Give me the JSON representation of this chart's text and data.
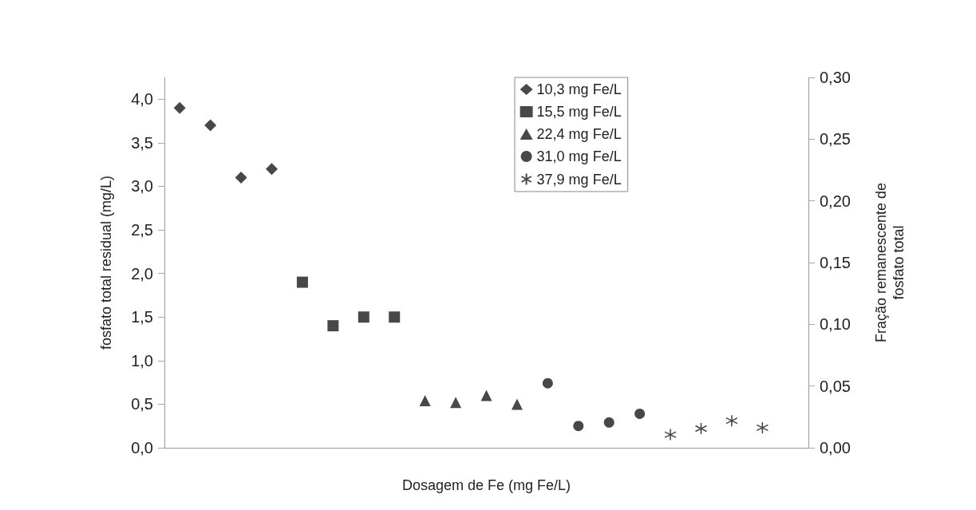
{
  "chart_data": {
    "type": "scatter",
    "xlabel": "Dosagem de Fe (mg Fe/L)",
    "ylabel": "fosfato total residual (mg/L)",
    "y2label": "Fração remanescente de\nfosfato total",
    "categories": [
      null,
      null,
      null,
      null,
      null,
      null,
      null,
      null,
      null,
      null,
      null,
      null,
      null,
      null,
      null,
      null,
      null,
      null,
      null,
      null,
      null
    ],
    "series": [
      {
        "name": "10,3 mg Fe/L",
        "color": "#1a1a1a",
        "marker": "diamond",
        "values": [
          3.9,
          3.7,
          3.1,
          3.2,
          null,
          null,
          null,
          null,
          null,
          null,
          null,
          null,
          null,
          null,
          null,
          null,
          null,
          null,
          null,
          null,
          null
        ]
      },
      {
        "name": "15,5 mg Fe/L",
        "color": "#1a1a1a",
        "marker": "square",
        "values": [
          null,
          null,
          null,
          null,
          1.9,
          1.4,
          1.5,
          1.5,
          null,
          null,
          null,
          null,
          null,
          null,
          null,
          null,
          null,
          null,
          null,
          null,
          null
        ]
      },
      {
        "name": "22,4 mg Fe/L",
        "color": "#1a1a1a",
        "marker": "triangle",
        "values": [
          null,
          null,
          null,
          null,
          null,
          null,
          null,
          null,
          0.54,
          0.52,
          0.6,
          0.5,
          null,
          null,
          null,
          null,
          null,
          null,
          null,
          null,
          null
        ]
      },
      {
        "name": "31,0 mg Fe/L",
        "color": "#1a1a1a",
        "marker": "circle",
        "values": [
          null,
          null,
          null,
          null,
          null,
          null,
          null,
          null,
          null,
          null,
          null,
          null,
          0.74,
          0.25,
          0.29,
          0.39,
          null,
          null,
          null,
          null,
          null
        ]
      },
      {
        "name": "37,9 mg Fe/L",
        "color": "#1a1a1a",
        "marker": "cross",
        "values": [
          null,
          null,
          null,
          null,
          null,
          null,
          null,
          null,
          null,
          null,
          null,
          null,
          null,
          null,
          null,
          null,
          0.15,
          0.22,
          0.31,
          0.23,
          null
        ]
      }
    ],
    "ylim": [
      0,
      4.25
    ],
    "yticks": [
      {
        "value": 0,
        "label": "0,0"
      },
      {
        "value": 0.5,
        "label": "0,5"
      },
      {
        "value": 1,
        "label": "1,0"
      },
      {
        "value": 1.5,
        "label": "1,5"
      },
      {
        "value": 2,
        "label": "2,0"
      },
      {
        "value": 2.5,
        "label": "2,5"
      },
      {
        "value": 3,
        "label": "3,0"
      },
      {
        "value": 3.5,
        "label": "3,5"
      },
      {
        "value": 4,
        "label": "4,0"
      }
    ],
    "y2lim": [
      0,
      0.3
    ],
    "y2ticks": [
      {
        "value": 0,
        "label": "0,00"
      },
      {
        "value": 0.05,
        "label": "0,05"
      },
      {
        "value": 0.1,
        "label": "0,10"
      },
      {
        "value": 0.15,
        "label": "0,15"
      },
      {
        "value": 0.2,
        "label": "0,20"
      },
      {
        "value": 0.25,
        "label": "0,25"
      },
      {
        "value": 0.3,
        "label": "0,30"
      }
    ],
    "grid": false,
    "legend": "top right"
  }
}
